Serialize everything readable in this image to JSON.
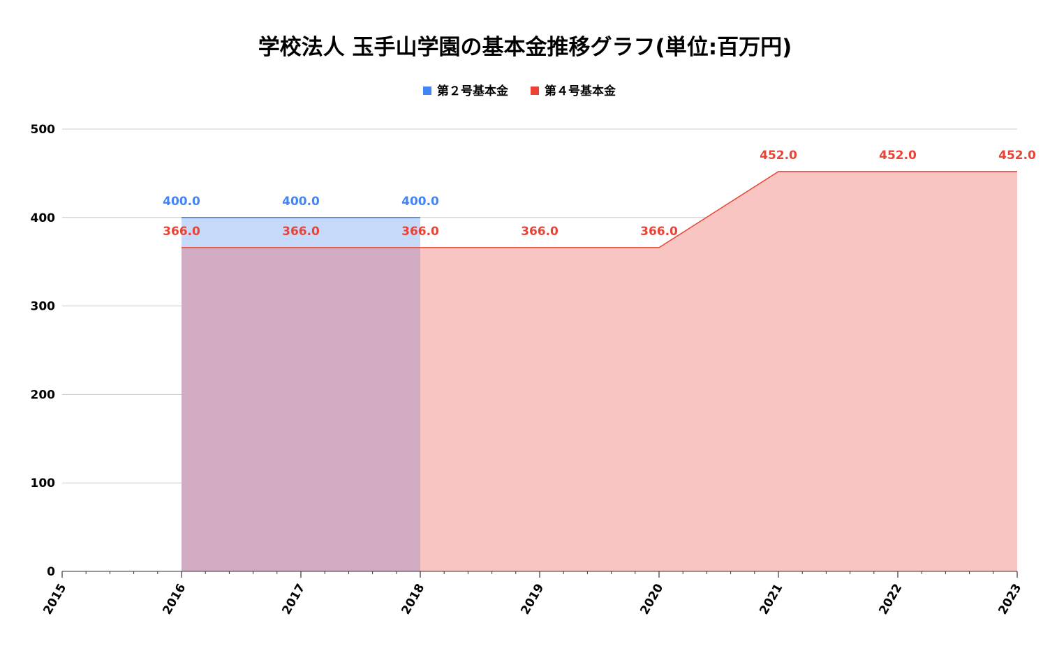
{
  "chart_data": {
    "type": "area",
    "title": "学校法人 玉手山学園の基本金推移グラフ(単位:百万円)",
    "xlabel": "",
    "ylabel": "",
    "x": [
      "2015",
      "2016",
      "2017",
      "2018",
      "2019",
      "2020",
      "2021",
      "2022",
      "2023"
    ],
    "ylim": [
      0,
      500
    ],
    "yticks": [
      "0",
      "100",
      "200",
      "300",
      "400",
      "500"
    ],
    "grid": true,
    "legend_position": "top",
    "series": [
      {
        "name": "第２号基本金",
        "color": "#4285f4",
        "fill": "#c6d9f9",
        "values": [
          null,
          400,
          400,
          400,
          null,
          null,
          null,
          null,
          null
        ],
        "labels": [
          "",
          "400.0",
          "400.0",
          "400.0",
          "",
          "",
          "",
          "",
          ""
        ]
      },
      {
        "name": "第４号基本金",
        "color": "#ea4335",
        "fill": "#f8c5c2",
        "values": [
          null,
          366,
          366,
          366,
          366,
          366,
          452,
          452,
          452
        ],
        "labels": [
          "",
          "366.0",
          "366.0",
          "366.0",
          "366.0",
          "366.0",
          "452.0",
          "452.0",
          "452.0"
        ]
      }
    ],
    "overlap_fill": "#d1acc2"
  }
}
